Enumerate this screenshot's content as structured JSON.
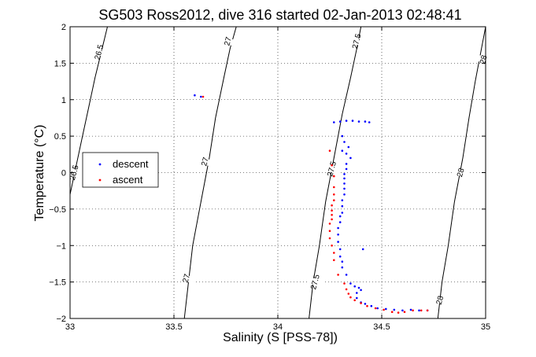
{
  "chart_data": {
    "type": "scatter",
    "title": "SG503 Ross2012, dive 316 started 02-Jan-2013 02:48:41",
    "xlabel": "Salinity (S [PSS-78])",
    "ylabel": "Temperature (°C)",
    "xlim": [
      33,
      35
    ],
    "ylim": [
      -2,
      2
    ],
    "x_ticks": [
      33,
      33.5,
      34,
      34.5,
      35
    ],
    "x_tick_labels": [
      "33",
      "33.5",
      "34",
      "34.5",
      "35"
    ],
    "y_ticks": [
      -2,
      -1.5,
      -1,
      -0.5,
      0,
      0.5,
      1,
      1.5,
      2
    ],
    "y_tick_labels": [
      "-2",
      "-1.5",
      "-1",
      "-0.5",
      "0",
      "0.5",
      "1",
      "1.5",
      "2"
    ],
    "grid": "dotted",
    "legend_position": "center-left",
    "series": [
      {
        "name": "descent",
        "color": "#0000ff",
        "points": [
          [
            33.6,
            1.06
          ],
          [
            33.63,
            1.04
          ],
          [
            34.27,
            0.69
          ],
          [
            34.3,
            0.7
          ],
          [
            34.33,
            0.71
          ],
          [
            34.36,
            0.71
          ],
          [
            34.39,
            0.7
          ],
          [
            34.42,
            0.7
          ],
          [
            34.44,
            0.69
          ],
          [
            34.31,
            0.5
          ],
          [
            34.32,
            0.42
          ],
          [
            34.34,
            0.35
          ],
          [
            34.31,
            0.3
          ],
          [
            34.33,
            0.26
          ],
          [
            34.35,
            0.2
          ],
          [
            34.33,
            0.12
          ],
          [
            34.33,
            0.05
          ],
          [
            34.32,
            -0.02
          ],
          [
            34.32,
            -0.08
          ],
          [
            34.32,
            -0.15
          ],
          [
            34.32,
            -0.22
          ],
          [
            34.32,
            -0.3
          ],
          [
            34.31,
            -0.38
          ],
          [
            34.31,
            -0.46
          ],
          [
            34.31,
            -0.55
          ],
          [
            34.3,
            -0.6
          ],
          [
            34.3,
            -0.68
          ],
          [
            34.29,
            -0.76
          ],
          [
            34.29,
            -0.85
          ],
          [
            34.29,
            -0.95
          ],
          [
            34.3,
            -1.05
          ],
          [
            34.3,
            -1.15
          ],
          [
            34.31,
            -1.22
          ],
          [
            34.31,
            -1.3
          ],
          [
            34.41,
            -1.05
          ],
          [
            34.33,
            -1.4
          ],
          [
            34.35,
            -1.52
          ],
          [
            34.37,
            -1.56
          ],
          [
            34.39,
            -1.58
          ],
          [
            34.4,
            -1.61
          ],
          [
            34.38,
            -1.65
          ],
          [
            34.38,
            -1.72
          ],
          [
            34.4,
            -1.78
          ],
          [
            34.42,
            -1.8
          ],
          [
            34.45,
            -1.83
          ],
          [
            34.48,
            -1.86
          ],
          [
            34.52,
            -1.87
          ],
          [
            34.56,
            -1.88
          ],
          [
            34.6,
            -1.89
          ],
          [
            34.64,
            -1.88
          ],
          [
            34.68,
            -1.89
          ],
          [
            34.72,
            -1.89
          ]
        ]
      },
      {
        "name": "ascent",
        "color": "#ff0000",
        "points": [
          [
            33.64,
            1.04
          ],
          [
            34.25,
            0.3
          ],
          [
            34.26,
            0.1
          ],
          [
            34.27,
            -0.05
          ],
          [
            34.27,
            -0.2
          ],
          [
            34.27,
            -0.3
          ],
          [
            34.27,
            -0.38
          ],
          [
            34.26,
            -0.45
          ],
          [
            34.26,
            -0.52
          ],
          [
            34.26,
            -0.58
          ],
          [
            34.26,
            -0.64
          ],
          [
            34.25,
            -0.7
          ],
          [
            34.25,
            -0.8
          ],
          [
            34.25,
            -0.9
          ],
          [
            34.26,
            -1.0
          ],
          [
            34.27,
            -1.1
          ],
          [
            34.27,
            -1.2
          ],
          [
            34.29,
            -1.4
          ],
          [
            34.32,
            -1.52
          ],
          [
            34.33,
            -1.6
          ],
          [
            34.34,
            -1.66
          ],
          [
            34.35,
            -1.71
          ],
          [
            34.37,
            -1.75
          ],
          [
            34.4,
            -1.79
          ],
          [
            34.43,
            -1.83
          ],
          [
            34.47,
            -1.86
          ],
          [
            34.51,
            -1.88
          ],
          [
            34.55,
            -1.91
          ],
          [
            34.58,
            -1.92
          ],
          [
            34.61,
            -1.91
          ],
          [
            34.65,
            -1.89
          ],
          [
            34.69,
            -1.89
          ],
          [
            34.72,
            -1.89
          ]
        ]
      }
    ],
    "contours": [
      {
        "label": "26.5",
        "points": [
          [
            33.0,
            -0.3
          ],
          [
            33.03,
            0.1
          ],
          [
            33.06,
            0.5
          ],
          [
            33.09,
            0.9
          ],
          [
            33.12,
            1.3
          ],
          [
            33.15,
            1.65
          ],
          [
            33.18,
            2.0
          ]
        ],
        "label_positions": [
          [
            33.02,
            0.0
          ],
          [
            33.14,
            1.65
          ]
        ]
      },
      {
        "label": "27",
        "points": [
          [
            33.55,
            -2.0
          ],
          [
            33.57,
            -1.5
          ],
          [
            33.59,
            -1.0
          ],
          [
            33.63,
            -0.4
          ],
          [
            33.67,
            0.2
          ],
          [
            33.7,
            0.75
          ],
          [
            33.74,
            1.3
          ],
          [
            33.77,
            1.7
          ],
          [
            33.8,
            2.0
          ]
        ],
        "label_positions": [
          [
            33.56,
            -1.45
          ],
          [
            33.65,
            0.15
          ],
          [
            33.76,
            1.8
          ]
        ]
      },
      {
        "label": "27.5",
        "points": [
          [
            34.15,
            -2.0
          ],
          [
            34.17,
            -1.5
          ],
          [
            34.2,
            -1.0
          ],
          [
            34.23,
            -0.4
          ],
          [
            34.27,
            0.2
          ],
          [
            34.31,
            0.8
          ],
          [
            34.35,
            1.3
          ],
          [
            34.38,
            1.7
          ],
          [
            34.4,
            2.0
          ]
        ],
        "label_positions": [
          [
            34.18,
            -1.5
          ],
          [
            34.26,
            0.05
          ],
          [
            34.38,
            1.8
          ]
        ]
      },
      {
        "label": "28",
        "points": [
          [
            34.77,
            -2.0
          ],
          [
            34.79,
            -1.5
          ],
          [
            34.82,
            -1.0
          ],
          [
            34.85,
            -0.4
          ],
          [
            34.89,
            0.2
          ],
          [
            34.92,
            0.75
          ],
          [
            34.95,
            1.25
          ],
          [
            34.98,
            1.7
          ],
          [
            35.0,
            2.0
          ]
        ],
        "label_positions": [
          [
            34.78,
            -1.75
          ],
          [
            34.88,
            0.0
          ],
          [
            34.99,
            1.55
          ]
        ]
      }
    ]
  }
}
